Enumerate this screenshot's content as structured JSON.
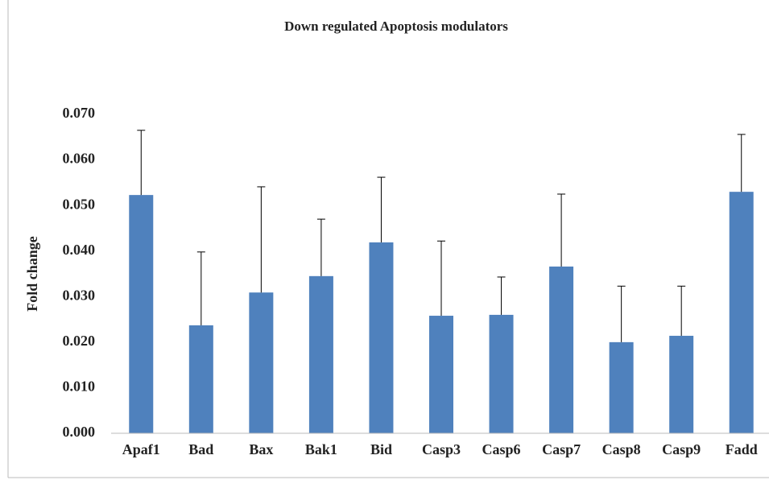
{
  "chart_data": {
    "type": "bar",
    "title": "Down regulated Apoptosis modulators",
    "y_label": "Fold change",
    "categories": [
      "Apaf1",
      "Bad",
      "Bax",
      "Bak1",
      "Bid",
      "Casp3",
      "Casp6",
      "Casp7",
      "Casp8",
      "Casp9",
      "Fadd"
    ],
    "values": [
      0.0523,
      0.0237,
      0.0309,
      0.0345,
      0.0419,
      0.0258,
      0.026,
      0.0366,
      0.02,
      0.0214,
      0.053
    ],
    "errors": [
      0.0142,
      0.0161,
      0.0232,
      0.0125,
      0.0143,
      0.0164,
      0.0083,
      0.0159,
      0.0123,
      0.0109,
      0.0126
    ],
    "color": "#4f81bd",
    "ylim": [
      0,
      0.07
    ],
    "yticks": [
      {
        "value": 0,
        "label": "0.000"
      },
      {
        "value": 0.01,
        "label": "0.010"
      },
      {
        "value": 0.02,
        "label": "0.020"
      },
      {
        "value": 0.03,
        "label": "0.030"
      },
      {
        "value": 0.04,
        "label": "0.040"
      },
      {
        "value": 0.05,
        "label": "0.050"
      },
      {
        "value": 0.06,
        "label": "0.060"
      },
      {
        "value": 0.07,
        "label": "0.070"
      }
    ],
    "grid": false
  }
}
